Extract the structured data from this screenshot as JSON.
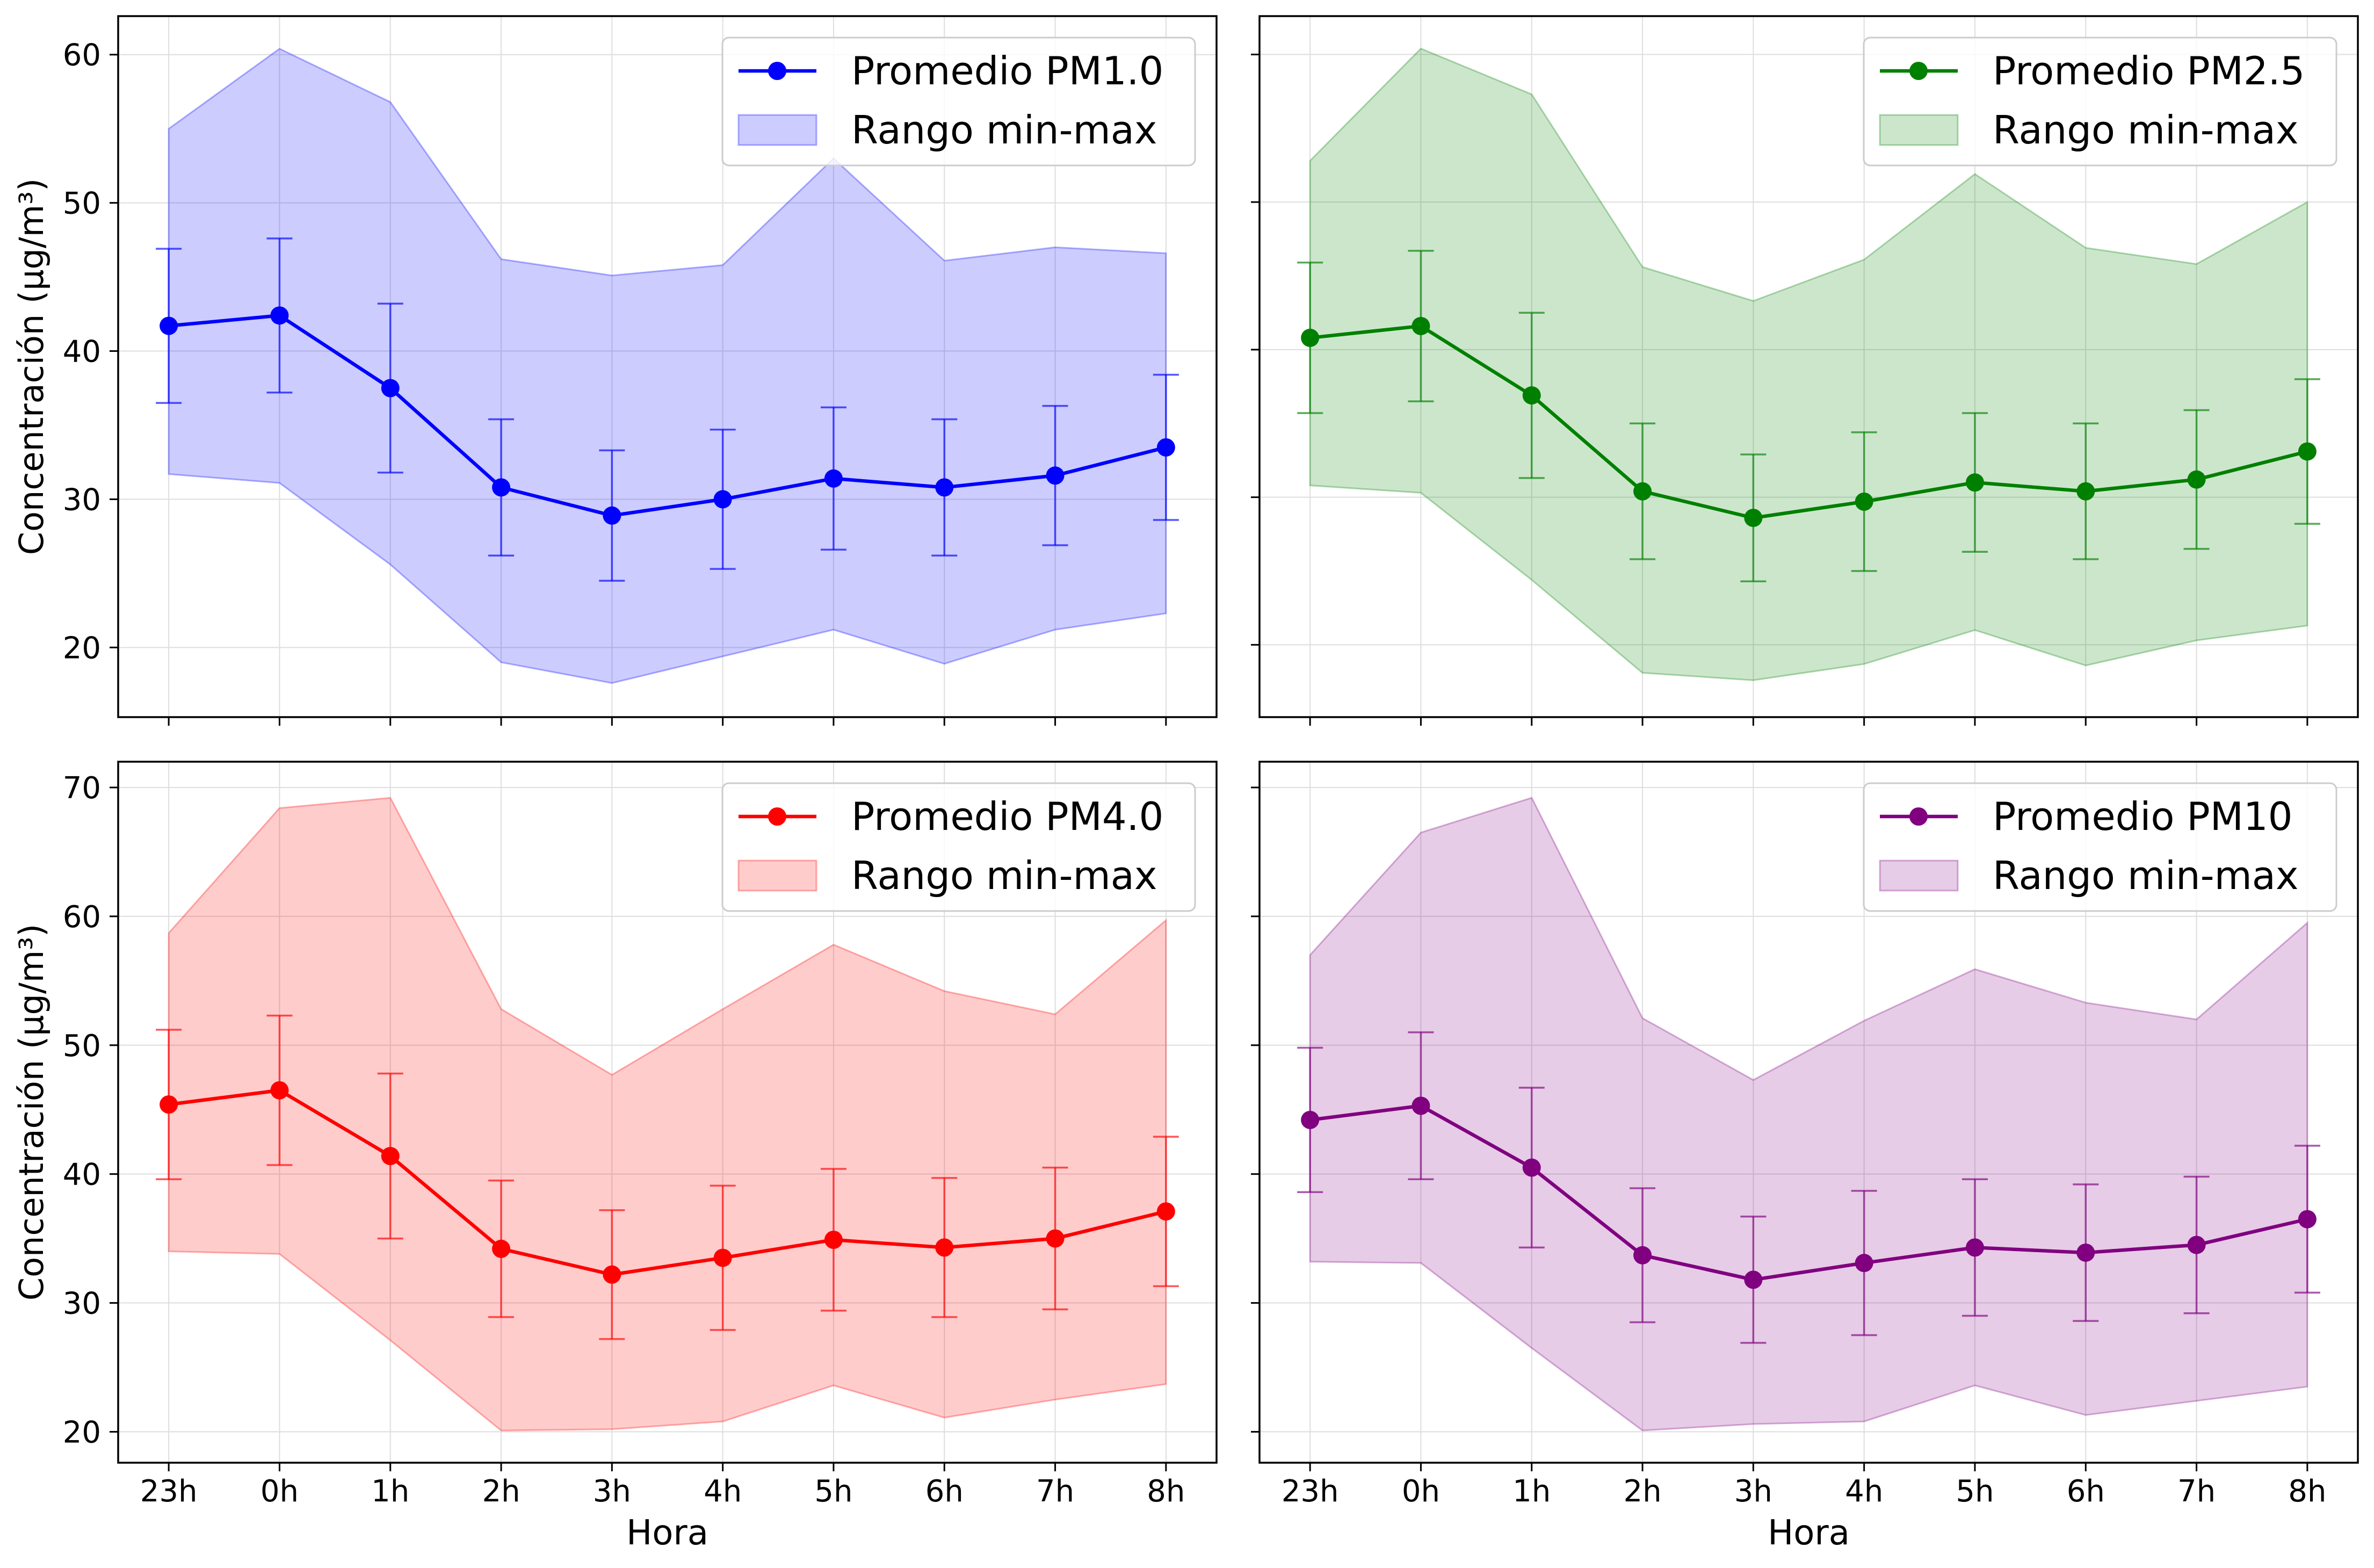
{
  "chart_data": [
    {
      "type": "line",
      "xlabel": "",
      "ylabel": "Concentración (µg/m³)",
      "categories": [
        "23h",
        "0h",
        "1h",
        "2h",
        "3h",
        "4h",
        "5h",
        "6h",
        "7h",
        "8h"
      ],
      "ylim": [
        15.3,
        62.6
      ],
      "yticks": [
        20,
        30,
        40,
        50,
        60
      ],
      "grid": true,
      "legend_position": "top-right",
      "reference_line_x": -0.5,
      "color": "#0000ff",
      "series": [
        {
          "name": "Promedio PM1.0",
          "kind": "mean",
          "values": [
            41.7,
            42.4,
            37.5,
            30.8,
            28.9,
            30.0,
            31.4,
            30.8,
            31.6,
            33.5
          ],
          "error": [
            5.2,
            5.2,
            5.7,
            4.6,
            4.4,
            4.7,
            4.8,
            4.6,
            4.7,
            4.9
          ]
        },
        {
          "name": "Rango min-max",
          "kind": "range",
          "min": [
            31.7,
            31.1,
            25.6,
            19.0,
            17.6,
            19.4,
            21.2,
            18.9,
            21.2,
            22.3
          ],
          "max": [
            55.0,
            60.4,
            56.8,
            46.2,
            45.1,
            45.8,
            53.0,
            46.1,
            47.0,
            46.6
          ]
        }
      ]
    },
    {
      "type": "line",
      "xlabel": "",
      "ylabel": "",
      "categories": [
        "23h",
        "0h",
        "1h",
        "2h",
        "3h",
        "4h",
        "5h",
        "6h",
        "7h",
        "8h"
      ],
      "ylim": [
        15.1,
        62.6
      ],
      "yticks": [],
      "grid": true,
      "legend_position": "top-right",
      "reference_line_x": -0.5,
      "color": "#008000",
      "series": [
        {
          "name": "Promedio PM2.5",
          "kind": "mean",
          "values": [
            40.8,
            41.6,
            36.9,
            30.4,
            28.6,
            29.7,
            31.0,
            30.4,
            31.2,
            33.1
          ],
          "error": [
            5.1,
            5.1,
            5.6,
            4.6,
            4.3,
            4.7,
            4.7,
            4.6,
            4.7,
            4.9
          ]
        },
        {
          "name": "Rango min-max",
          "kind": "range",
          "min": [
            30.8,
            30.3,
            24.4,
            18.1,
            17.6,
            18.7,
            21.0,
            18.6,
            20.3,
            21.3
          ],
          "max": [
            52.8,
            60.4,
            57.3,
            45.6,
            43.3,
            46.1,
            51.9,
            46.9,
            45.8,
            50.0
          ]
        }
      ]
    },
    {
      "type": "line",
      "xlabel": "Hora",
      "ylabel": "Concentración (µg/m³)",
      "categories": [
        "23h",
        "0h",
        "1h",
        "2h",
        "3h",
        "4h",
        "5h",
        "6h",
        "7h",
        "8h"
      ],
      "ylim": [
        17.6,
        72.0
      ],
      "yticks": [
        20,
        30,
        40,
        50,
        60,
        70
      ],
      "grid": true,
      "legend_position": "top-right",
      "reference_line_x": -0.5,
      "color": "#ff0000",
      "series": [
        {
          "name": "Promedio PM4.0",
          "kind": "mean",
          "values": [
            45.4,
            46.5,
            41.4,
            34.2,
            32.2,
            33.5,
            34.9,
            34.3,
            35.0,
            37.1
          ],
          "error": [
            5.8,
            5.8,
            6.4,
            5.3,
            5.0,
            5.6,
            5.5,
            5.4,
            5.5,
            5.8
          ]
        },
        {
          "name": "Rango min-max",
          "kind": "range",
          "min": [
            34.0,
            33.8,
            27.1,
            20.1,
            20.2,
            20.8,
            23.6,
            21.1,
            22.5,
            23.7
          ],
          "max": [
            58.7,
            68.4,
            69.2,
            52.8,
            47.7,
            52.8,
            57.8,
            54.2,
            52.4,
            59.7
          ]
        }
      ]
    },
    {
      "type": "line",
      "xlabel": "Hora",
      "ylabel": "",
      "categories": [
        "23h",
        "0h",
        "1h",
        "2h",
        "3h",
        "4h",
        "5h",
        "6h",
        "7h",
        "8h"
      ],
      "ylim": [
        17.6,
        72.0
      ],
      "yticks": [],
      "grid": true,
      "legend_position": "top-right",
      "reference_line_x": -0.5,
      "color": "#800080",
      "series": [
        {
          "name": "Promedio PM10",
          "kind": "mean",
          "values": [
            44.2,
            45.3,
            40.5,
            33.7,
            31.8,
            33.1,
            34.3,
            33.9,
            34.5,
            36.5
          ],
          "error": [
            5.6,
            5.7,
            6.2,
            5.2,
            4.9,
            5.6,
            5.3,
            5.3,
            5.3,
            5.7
          ]
        },
        {
          "name": "Rango min-max",
          "kind": "range",
          "min": [
            33.2,
            33.1,
            26.5,
            20.1,
            20.6,
            20.8,
            23.6,
            21.3,
            22.4,
            23.5
          ],
          "max": [
            57.0,
            66.5,
            69.2,
            52.1,
            47.3,
            51.9,
            55.9,
            53.3,
            52.0,
            59.5
          ]
        }
      ]
    }
  ]
}
